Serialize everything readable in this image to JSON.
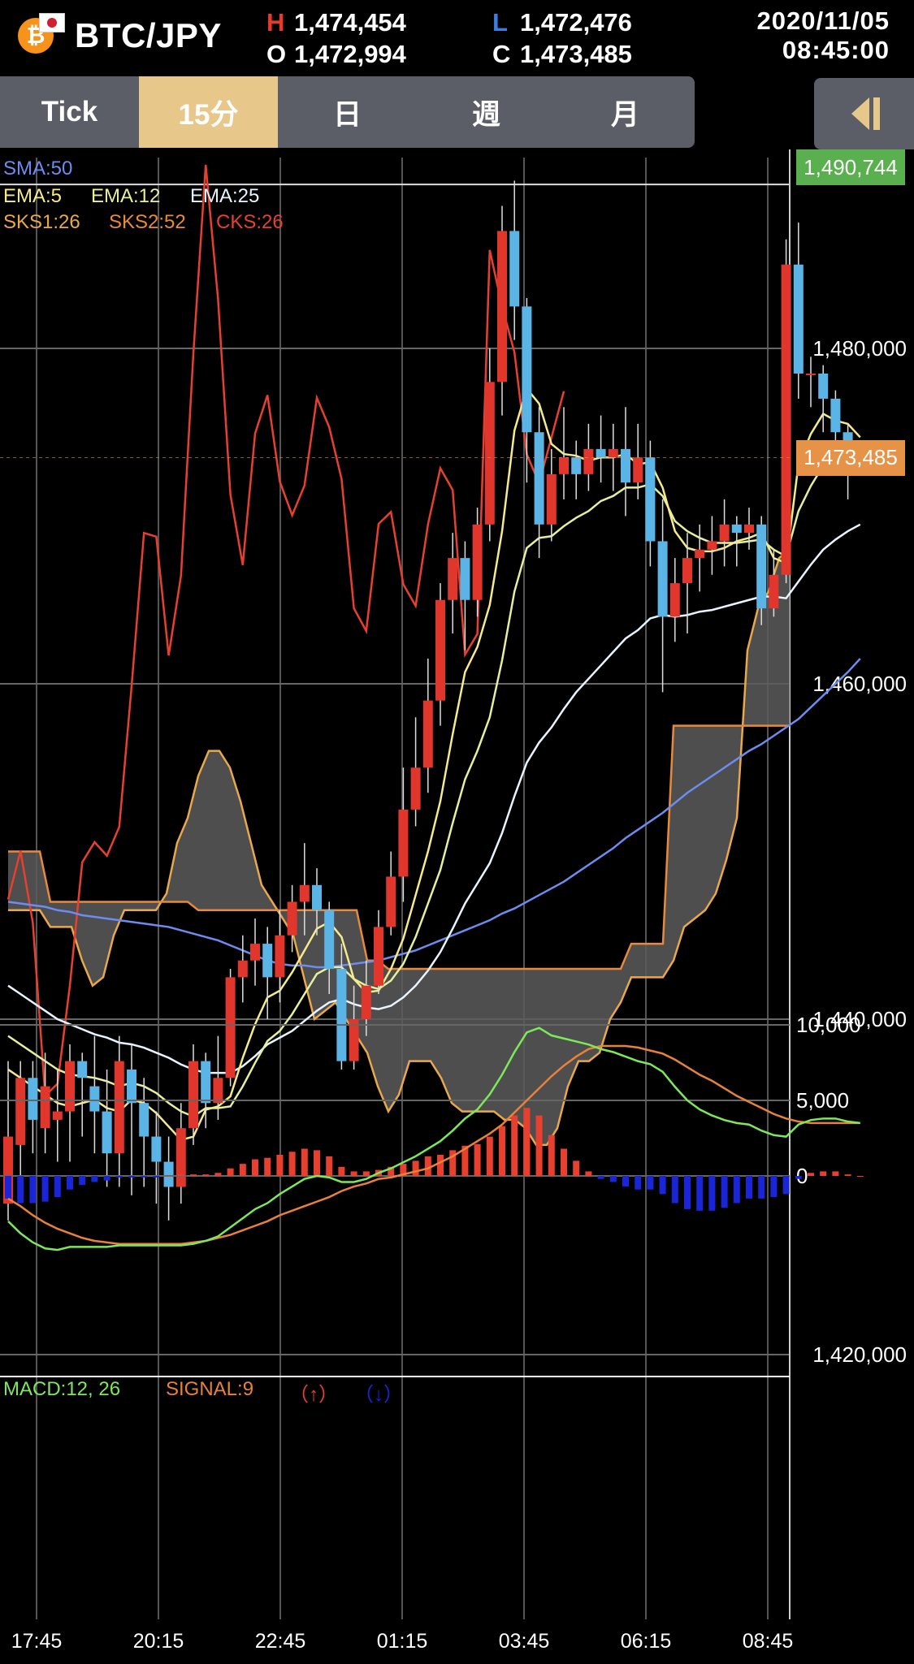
{
  "header": {
    "pair": "BTC/JPY",
    "coin_icon": "bitcoin-icon",
    "flag_icon": "japan-flag-icon",
    "high_label": "H",
    "high": "1,474,454",
    "low_label": "L",
    "low": "1,472,476",
    "open_label": "O",
    "open": "1,472,994",
    "close_label": "C",
    "close": "1,473,485",
    "date": "2020/11/05",
    "time": "08:45:00"
  },
  "tabs": [
    {
      "label": "Tick",
      "active": false
    },
    {
      "label": "15分",
      "active": true
    },
    {
      "label": "日",
      "active": false
    },
    {
      "label": "週",
      "active": false
    },
    {
      "label": "月",
      "active": false
    }
  ],
  "collapse_icon": "collapse-left-icon",
  "indicators": {
    "sma": "SMA:50",
    "ema5": "EMA:5",
    "ema12": "EMA:12",
    "ema25": "EMA:25",
    "sks1": "SKS1:26",
    "sks2": "SKS2:52",
    "cks": "CKS:26",
    "macd": "MACD:12, 26",
    "signal": "SIGNAL:9",
    "up": "（↑）",
    "down": "（↓）"
  },
  "colors": {
    "up_candle": "#e0362b",
    "down_candle": "#5ab4e5",
    "sma": "#6d8cf0",
    "ema5": "#f5eb8c",
    "ema12": "#e6ef9c",
    "ema25": "#e8f4ff",
    "sks1": "#e9a84a",
    "sks2": "#e88a3a",
    "cks": "#e8402e",
    "macd": "#7de85a",
    "signal": "#e8823a",
    "hist_pos": "#e8402e",
    "hist_neg": "#1a25d8",
    "current_tag": "#e69348",
    "high_tag": "#5ab04e"
  },
  "chart_data": [
    {
      "type": "candlestick",
      "title": "BTC/JPY 15分",
      "x_ticks": [
        "17:45",
        "20:15",
        "22:45",
        "01:15",
        "03:45",
        "06:15",
        "08:45"
      ],
      "y_ticks": [
        "1,480,000",
        "1,460,000",
        "1,440,000",
        "1,420,000"
      ],
      "y_tick_values": [
        1480000,
        1460000,
        1440000,
        1420000
      ],
      "ylim": [
        1420000,
        1490744
      ],
      "high_marker": "1,490,744",
      "current_marker": "1,473,485",
      "current_value": 1473485,
      "candles": [
        [
          1429000,
          1433000,
          1428000,
          1437500
        ],
        [
          1432500,
          1436500,
          1430000,
          1437500
        ],
        [
          1436500,
          1434000,
          1432000,
          1437500
        ],
        [
          1433500,
          1436000,
          1432000,
          1438000
        ],
        [
          1434000,
          1434500,
          1431500,
          1437000
        ],
        [
          1434500,
          1437500,
          1431500,
          1438500
        ],
        [
          1437500,
          1436500,
          1433000,
          1438000
        ],
        [
          1436000,
          1434500,
          1432000,
          1439000
        ],
        [
          1434500,
          1432000,
          1430000,
          1437000
        ],
        [
          1432000,
          1437500,
          1430000,
          1439000
        ],
        [
          1437000,
          1435000,
          1429500,
          1438500
        ],
        [
          1435000,
          1433000,
          1430000,
          1436500
        ],
        [
          1433000,
          1431500,
          1429000,
          1434500
        ],
        [
          1431500,
          1430000,
          1428000,
          1433000
        ],
        [
          1430000,
          1433500,
          1429000,
          1435000
        ],
        [
          1433500,
          1437500,
          1432500,
          1438500
        ],
        [
          1437500,
          1435000,
          1433500,
          1438000
        ],
        [
          1435000,
          1436500,
          1434000,
          1439000
        ],
        [
          1436500,
          1442500,
          1436000,
          1443000
        ],
        [
          1442500,
          1443500,
          1441000,
          1445000
        ],
        [
          1443500,
          1444500,
          1442000,
          1446000
        ],
        [
          1444500,
          1442500,
          1440000,
          1445500
        ],
        [
          1442500,
          1445000,
          1441000,
          1446500
        ],
        [
          1445000,
          1447000,
          1444000,
          1448000
        ],
        [
          1447000,
          1448000,
          1445000,
          1450500
        ],
        [
          1448000,
          1446500,
          1445000,
          1449000
        ],
        [
          1446500,
          1443000,
          1441500,
          1447000
        ],
        [
          1443000,
          1437500,
          1437000,
          1444500
        ],
        [
          1437500,
          1440000,
          1437000,
          1442000
        ],
        [
          1440000,
          1442000,
          1439000,
          1443500
        ],
        [
          1442000,
          1445500,
          1441500,
          1446500
        ],
        [
          1445500,
          1448500,
          1445000,
          1450000
        ],
        [
          1448500,
          1452500,
          1447000,
          1455000
        ],
        [
          1452500,
          1455000,
          1451500,
          1458000
        ],
        [
          1455000,
          1459000,
          1453500,
          1461500
        ],
        [
          1459000,
          1465000,
          1457500,
          1466000
        ],
        [
          1465000,
          1467500,
          1463000,
          1469000
        ],
        [
          1467500,
          1465000,
          1462000,
          1468500
        ],
        [
          1465000,
          1469500,
          1464000,
          1470500
        ],
        [
          1469500,
          1478000,
          1468500,
          1480000
        ],
        [
          1478000,
          1487000,
          1476000,
          1488500
        ],
        [
          1487000,
          1482500,
          1480500,
          1490000
        ],
        [
          1482500,
          1475000,
          1472000,
          1483000
        ],
        [
          1475000,
          1469500,
          1467500,
          1476500
        ],
        [
          1469500,
          1472500,
          1468500,
          1474000
        ],
        [
          1472500,
          1473500,
          1471000,
          1476500
        ],
        [
          1473500,
          1472500,
          1471000,
          1474500
        ],
        [
          1472500,
          1474000,
          1471500,
          1475500
        ],
        [
          1474000,
          1473500,
          1472000,
          1476000
        ],
        [
          1473500,
          1474000,
          1471500,
          1475500
        ],
        [
          1474000,
          1472000,
          1470000,
          1476500
        ],
        [
          1472000,
          1473500,
          1471000,
          1475500
        ],
        [
          1473500,
          1468500,
          1467000,
          1474500
        ],
        [
          1468500,
          1464000,
          1459500,
          1471000
        ],
        [
          1464000,
          1466000,
          1462500,
          1467500
        ],
        [
          1466000,
          1467500,
          1463000,
          1469000
        ],
        [
          1467500,
          1468000,
          1465500,
          1469500
        ],
        [
          1468000,
          1468500,
          1466500,
          1470000
        ],
        [
          1468500,
          1469500,
          1467000,
          1471000
        ],
        [
          1469500,
          1469000,
          1467000,
          1470000
        ],
        [
          1469000,
          1469500,
          1468000,
          1470500
        ],
        [
          1469500,
          1464500,
          1463500,
          1470000
        ],
        [
          1464500,
          1466500,
          1464000,
          1468000
        ],
        [
          1466500,
          1485000,
          1466000,
          1486500
        ],
        [
          1485000,
          1478500,
          1477000,
          1487500
        ],
        [
          1478500,
          1478500,
          1476500,
          1479500
        ],
        [
          1478500,
          1477000,
          1475000,
          1479000
        ],
        [
          1477000,
          1475000,
          1474000,
          1477500
        ],
        [
          1475000,
          1473000,
          1471000,
          1475500
        ],
        [
          1473000,
          1473500,
          1472500,
          1474500
        ]
      ],
      "sma50": [
        1447000,
        1446900,
        1446800,
        1446700,
        1446500,
        1446400,
        1446200,
        1446100,
        1446000,
        1445900,
        1445800,
        1445700,
        1445600,
        1445500,
        1445300,
        1445100,
        1444900,
        1444700,
        1444400,
        1444100,
        1443800,
        1443500,
        1443300,
        1443200,
        1443200,
        1443100,
        1443100,
        1443200,
        1443300,
        1443400,
        1443500,
        1443700,
        1443900,
        1444100,
        1444400,
        1444700,
        1445000,
        1445300,
        1445600,
        1445900,
        1446300,
        1446600,
        1447000,
        1447400,
        1447800,
        1448200,
        1448700,
        1449200,
        1449700,
        1450200,
        1450800,
        1451300,
        1451800,
        1452300,
        1452900,
        1453500,
        1454000,
        1454500,
        1455000,
        1455500,
        1456000,
        1456400,
        1456900,
        1457400,
        1457900,
        1458600,
        1459300,
        1460000,
        1460700,
        1461500
      ],
      "ema5": [
        1437000,
        1436500,
        1436000,
        1435500,
        1435000,
        1434800,
        1435000,
        1435200,
        1434700,
        1434500,
        1435200,
        1435000,
        1434400,
        1433600,
        1432800,
        1433000,
        1434600,
        1434800,
        1435400,
        1437700,
        1439700,
        1441300,
        1441700,
        1442800,
        1444100,
        1445400,
        1445800,
        1444900,
        1442400,
        1441600,
        1441700,
        1443000,
        1444800,
        1447400,
        1450000,
        1453000,
        1457000,
        1460700,
        1462200,
        1464700,
        1469100,
        1475100,
        1477600,
        1476700,
        1474300,
        1473700,
        1473600,
        1473300,
        1473500,
        1473500,
        1473700,
        1473100,
        1473200,
        1471700,
        1469100,
        1468100,
        1467900,
        1467900,
        1468100,
        1468500,
        1468700,
        1469000,
        1467500,
        1467200,
        1473100,
        1474900,
        1476100,
        1475700,
        1475500,
        1474700
      ],
      "ema12": [
        1439000,
        1438500,
        1438000,
        1437500,
        1437000,
        1436700,
        1436600,
        1436500,
        1436300,
        1436000,
        1436200,
        1436000,
        1435600,
        1435000,
        1434500,
        1434200,
        1434700,
        1434700,
        1434800,
        1436000,
        1437400,
        1438700,
        1439300,
        1440300,
        1441500,
        1442700,
        1443100,
        1443100,
        1442400,
        1442000,
        1441800,
        1442300,
        1443300,
        1444900,
        1446900,
        1448900,
        1451700,
        1454300,
        1456000,
        1458000,
        1461400,
        1465500,
        1468100,
        1468700,
        1468800,
        1469400,
        1469900,
        1470300,
        1470900,
        1471200,
        1471700,
        1471700,
        1471900,
        1471200,
        1469700,
        1469100,
        1468700,
        1468400,
        1468400,
        1468400,
        1468500,
        1468600,
        1468000,
        1467600,
        1470300,
        1471800,
        1473000,
        1473200,
        1473300,
        1473100
      ],
      "ema25": [
        1442000,
        1441500,
        1441000,
        1440500,
        1440000,
        1439700,
        1439400,
        1439100,
        1438900,
        1438600,
        1438500,
        1438300,
        1438000,
        1437700,
        1437300,
        1437000,
        1436800,
        1436800,
        1436800,
        1437200,
        1437800,
        1438500,
        1438900,
        1439300,
        1439900,
        1440500,
        1441000,
        1441200,
        1440900,
        1440700,
        1440600,
        1440800,
        1441300,
        1442000,
        1442900,
        1444000,
        1445400,
        1446900,
        1448100,
        1449300,
        1451100,
        1453300,
        1455300,
        1456500,
        1457400,
        1458500,
        1459500,
        1460300,
        1461100,
        1461900,
        1462700,
        1463200,
        1463900,
        1464100,
        1464000,
        1464100,
        1464300,
        1464400,
        1464600,
        1464800,
        1465000,
        1465200,
        1465200,
        1465100,
        1466100,
        1467100,
        1468000,
        1468600,
        1469100,
        1469500
      ],
      "ichimoku_span1": [
        1446500,
        1446500,
        1446500,
        1446500,
        1445500,
        1445500,
        1445500,
        1443500,
        1442000,
        1442500,
        1445000,
        1446500,
        1446500,
        1446500,
        1446500,
        1447500,
        1450500,
        1452000,
        1454500,
        1456000,
        1456000,
        1455000,
        1453000,
        1450500,
        1448000,
        1447000,
        1446000,
        1445000,
        1442500,
        1440000,
        1440500,
        1441000,
        1440000,
        1439000,
        1438000,
        1436000,
        1434500,
        1435500,
        1437500,
        1437500,
        1437500,
        1436500,
        1435000,
        1434500,
        1434500,
        1434500,
        1434500,
        1434000,
        1434000,
        1433500,
        1432500,
        1432500,
        1433500,
        1436000,
        1437500,
        1437500,
        1438000,
        1440000,
        1441000,
        1442500,
        1442500,
        1442500,
        1442500,
        1443500,
        1445500,
        1446000,
        1446500,
        1447500,
        1449500,
        1452000,
        1462000,
        1464500,
        1465500,
        1467500,
        1468000
      ]
    },
    {
      "type": "macd",
      "y_ticks": [
        "10,000",
        "5,000",
        "0"
      ],
      "y_tick_values": [
        10000,
        5000,
        0
      ],
      "ylim": [
        -5700,
        10700
      ],
      "macd": [
        -3000,
        -3800,
        -4400,
        -4800,
        -4900,
        -4700,
        -4700,
        -4700,
        -4700,
        -4600,
        -4600,
        -4600,
        -4600,
        -4600,
        -4600,
        -4500,
        -4300,
        -4000,
        -3400,
        -2800,
        -2200,
        -1800,
        -1200,
        -700,
        -200,
        0,
        -100,
        -400,
        -400,
        -200,
        200,
        500,
        900,
        1300,
        1800,
        2300,
        3000,
        3800,
        4400,
        5400,
        6700,
        8200,
        9500,
        9800,
        9300,
        9100,
        8900,
        8700,
        8400,
        8200,
        7900,
        7600,
        7400,
        6900,
        5900,
        5000,
        4400,
        4000,
        3700,
        3500,
        3400,
        3000,
        2700,
        2600,
        3400,
        3700,
        3800,
        3800,
        3600,
        3500
      ],
      "signal": [
        -1500,
        -2000,
        -2600,
        -3100,
        -3500,
        -3800,
        -4100,
        -4300,
        -4400,
        -4500,
        -4500,
        -4500,
        -4500,
        -4500,
        -4500,
        -4400,
        -4300,
        -4100,
        -3900,
        -3600,
        -3300,
        -3000,
        -2600,
        -2300,
        -2000,
        -1700,
        -1400,
        -1000,
        -700,
        -500,
        -200,
        -100,
        100,
        300,
        500,
        900,
        1300,
        1800,
        2300,
        2800,
        3400,
        4200,
        5000,
        5800,
        6600,
        7300,
        7900,
        8400,
        8600,
        8600,
        8600,
        8500,
        8300,
        8100,
        7700,
        7200,
        6700,
        6300,
        5800,
        5300,
        4900,
        4500,
        4100,
        3800,
        3600,
        3500,
        3500,
        3500,
        3500,
        3500
      ],
      "histogram": [
        -1500,
        -1800,
        -1800,
        -1700,
        -1400,
        -900,
        -600,
        -400,
        -300,
        -100,
        -100,
        -100,
        -100,
        0,
        100,
        100,
        100,
        200,
        500,
        800,
        1100,
        1200,
        1400,
        1600,
        1800,
        1700,
        1300,
        600,
        300,
        300,
        400,
        600,
        800,
        1000,
        1300,
        1400,
        1700,
        2000,
        2100,
        2600,
        3300,
        4000,
        4500,
        4000,
        2700,
        1800,
        1000,
        300,
        -200,
        -400,
        -700,
        -900,
        -900,
        -1200,
        -1800,
        -2200,
        -2300,
        -2300,
        -2100,
        -1800,
        -1500,
        -1500,
        -1400,
        -1200,
        -200,
        200,
        300,
        300,
        100,
        0
      ]
    }
  ]
}
